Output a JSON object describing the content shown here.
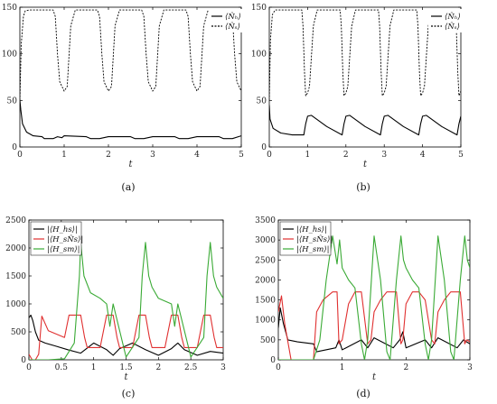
{
  "panels": {
    "a": {
      "caption": "(a)"
    },
    "b": {
      "caption": "(b)"
    },
    "c": {
      "caption": "(c)"
    },
    "d": {
      "caption": "(d)"
    }
  },
  "chart_data": [
    {
      "id": "a",
      "type": "line",
      "caption": "(a)",
      "xlabel": "t",
      "ylabel": "",
      "xlim": [
        0,
        5
      ],
      "ylim": [
        0,
        150
      ],
      "xticks": [
        0,
        1,
        2,
        3,
        4,
        5
      ],
      "yticks": [
        0,
        50,
        100,
        150
      ],
      "grid": false,
      "legend_position": "top-right",
      "series": [
        {
          "name": "⟨N̂ₕ⟩",
          "color": "#000000",
          "style": "solid",
          "x": [
            0,
            0.02,
            0.06,
            0.15,
            0.3,
            0.5,
            0.55,
            0.75,
            0.85,
            0.95,
            1.0,
            1.5,
            1.6,
            1.8,
            2.0,
            2.5,
            2.6,
            2.8,
            3.0,
            3.5,
            3.6,
            3.8,
            4.0,
            4.5,
            4.6,
            4.8,
            5.0
          ],
          "y": [
            50,
            40,
            25,
            16,
            12,
            11,
            9,
            9,
            11,
            10,
            12,
            11,
            9,
            9,
            11,
            11,
            9,
            9,
            11,
            11,
            9,
            9,
            11,
            11,
            9,
            9,
            12
          ]
        },
        {
          "name": "⟨N̂ₛ⟩",
          "color": "#000000",
          "style": "dashed",
          "x": [
            0,
            0.03,
            0.08,
            0.12,
            0.2,
            0.75,
            0.8,
            0.85,
            0.9,
            1.0,
            1.07,
            1.15,
            1.25,
            1.75,
            1.8,
            1.85,
            1.9,
            2.0,
            2.07,
            2.15,
            2.25,
            2.75,
            2.8,
            2.85,
            2.9,
            3.0,
            3.07,
            3.15,
            3.25,
            3.75,
            3.8,
            3.85,
            3.9,
            4.0,
            4.07,
            4.15,
            4.25,
            4.75,
            4.8,
            4.85,
            4.9,
            5.0
          ],
          "y": [
            50,
            110,
            140,
            146,
            147,
            147,
            140,
            100,
            70,
            60,
            65,
            130,
            147,
            147,
            140,
            100,
            70,
            60,
            65,
            130,
            147,
            147,
            140,
            100,
            70,
            60,
            65,
            130,
            147,
            147,
            140,
            100,
            70,
            60,
            65,
            130,
            147,
            147,
            140,
            100,
            70,
            60
          ]
        }
      ]
    },
    {
      "id": "b",
      "type": "line",
      "caption": "(b)",
      "xlabel": "t",
      "ylabel": "",
      "xlim": [
        0,
        5
      ],
      "ylim": [
        0,
        150
      ],
      "xticks": [
        0,
        1,
        2,
        3,
        4,
        5
      ],
      "yticks": [
        0,
        50,
        100,
        150
      ],
      "grid": false,
      "legend_position": "top-right",
      "series": [
        {
          "name": "⟨N̂ₕ⟩",
          "color": "#000000",
          "style": "solid",
          "x": [
            0,
            0.02,
            0.1,
            0.3,
            0.6,
            0.9,
            0.95,
            1.0,
            1.1,
            1.5,
            1.9,
            1.95,
            2.0,
            2.1,
            2.5,
            2.9,
            2.95,
            3.0,
            3.1,
            3.5,
            3.9,
            3.95,
            4.0,
            4.1,
            4.5,
            4.9,
            4.95,
            5.0
          ],
          "y": [
            45,
            30,
            20,
            15,
            13,
            13,
            25,
            33,
            34,
            22,
            13,
            25,
            33,
            34,
            22,
            13,
            25,
            33,
            34,
            22,
            13,
            25,
            33,
            34,
            22,
            13,
            25,
            33
          ]
        },
        {
          "name": "⟨N̂ₛ⟩",
          "color": "#000000",
          "style": "dashed",
          "x": [
            0,
            0.03,
            0.08,
            0.15,
            0.85,
            0.88,
            0.92,
            0.95,
            1.0,
            1.05,
            1.15,
            1.25,
            1.85,
            1.88,
            1.92,
            1.95,
            2.0,
            2.05,
            2.15,
            2.25,
            2.85,
            2.88,
            2.92,
            2.95,
            3.0,
            3.05,
            3.15,
            3.25,
            3.85,
            3.88,
            3.92,
            3.95,
            4.0,
            4.05,
            4.15,
            4.25,
            4.85,
            4.88,
            4.92,
            4.95,
            5.0
          ],
          "y": [
            50,
            115,
            142,
            147,
            147,
            130,
            80,
            55,
            58,
            65,
            130,
            147,
            147,
            130,
            80,
            55,
            58,
            65,
            130,
            147,
            147,
            130,
            80,
            55,
            58,
            65,
            130,
            147,
            147,
            130,
            80,
            55,
            58,
            65,
            130,
            147,
            147,
            130,
            80,
            55,
            60
          ]
        }
      ]
    },
    {
      "id": "c",
      "type": "line",
      "caption": "(c)",
      "xlabel": "t",
      "ylabel": "",
      "xlim": [
        0,
        3
      ],
      "ylim": [
        0,
        2500
      ],
      "xticks": [
        0,
        0.5,
        1,
        1.5,
        2,
        2.5,
        3
      ],
      "yticks": [
        0,
        500,
        1000,
        1500,
        2000,
        2500
      ],
      "grid": false,
      "legend_position": "top-left",
      "series": [
        {
          "name": "|⟨H_hs⟩|",
          "color": "#000000",
          "style": "solid",
          "x": [
            0,
            0.03,
            0.06,
            0.1,
            0.15,
            0.25,
            0.4,
            0.6,
            0.8,
            1.0,
            1.2,
            1.3,
            1.4,
            1.6,
            1.8,
            2.0,
            2.2,
            2.3,
            2.4,
            2.6,
            2.8,
            3.0
          ],
          "y": [
            750,
            800,
            700,
            500,
            350,
            300,
            250,
            180,
            120,
            300,
            180,
            80,
            200,
            300,
            180,
            80,
            200,
            300,
            180,
            80,
            150,
            120
          ]
        },
        {
          "name": "|⟨H_sN̂s⟩|",
          "color": "#e03030",
          "style": "solid",
          "x": [
            0,
            0.05,
            0.1,
            0.15,
            0.2,
            0.3,
            0.55,
            0.62,
            0.7,
            0.8,
            0.86,
            0.9,
            1.1,
            1.2,
            1.3,
            1.36,
            1.4,
            1.6,
            1.7,
            1.8,
            1.86,
            1.9,
            2.1,
            2.2,
            2.3,
            2.36,
            2.4,
            2.6,
            2.7,
            2.8,
            2.86,
            2.9,
            3.0
          ],
          "y": [
            100,
            0,
            0,
            100,
            780,
            520,
            400,
            800,
            800,
            800,
            400,
            220,
            220,
            800,
            800,
            400,
            220,
            220,
            800,
            800,
            400,
            220,
            220,
            800,
            800,
            400,
            220,
            220,
            800,
            800,
            400,
            220,
            220
          ]
        },
        {
          "name": "|⟨H_sm⟩|",
          "color": "#3aaa35",
          "style": "solid",
          "x": [
            0,
            0.3,
            0.55,
            0.7,
            0.78,
            0.8,
            0.85,
            0.95,
            1.1,
            1.2,
            1.25,
            1.3,
            1.5,
            1.7,
            1.75,
            1.8,
            1.85,
            1.9,
            2.0,
            2.2,
            2.25,
            2.3,
            2.5,
            2.7,
            2.75,
            2.8,
            2.85,
            2.9,
            3.0
          ],
          "y": [
            0,
            0,
            20,
            300,
            1500,
            2100,
            1500,
            1200,
            1100,
            1000,
            600,
            1000,
            50,
            400,
            1500,
            2100,
            1500,
            1300,
            1100,
            1000,
            600,
            1000,
            50,
            400,
            1500,
            2100,
            1500,
            1300,
            1100
          ]
        }
      ]
    },
    {
      "id": "d",
      "type": "line",
      "caption": "(d)",
      "xlabel": "t",
      "ylabel": "",
      "xlim": [
        0,
        3
      ],
      "ylim": [
        0,
        3500
      ],
      "xticks": [
        0,
        1,
        2,
        3
      ],
      "yticks": [
        0,
        500,
        1000,
        1500,
        2000,
        2500,
        3000,
        3500
      ],
      "grid": false,
      "legend_position": "top-left",
      "series": [
        {
          "name": "|⟨H_hs⟩|",
          "color": "#000000",
          "style": "solid",
          "x": [
            0,
            0.03,
            0.08,
            0.15,
            0.3,
            0.55,
            0.6,
            0.9,
            0.95,
            1.0,
            1.3,
            1.4,
            1.5,
            1.8,
            1.9,
            1.95,
            2.0,
            2.3,
            2.4,
            2.5,
            2.8,
            2.9,
            3.0
          ],
          "y": [
            800,
            1300,
            900,
            500,
            450,
            400,
            200,
            300,
            500,
            250,
            500,
            300,
            550,
            300,
            500,
            700,
            300,
            500,
            300,
            550,
            300,
            500,
            400
          ]
        },
        {
          "name": "|⟨H_sN̂s⟩|",
          "color": "#e03030",
          "style": "solid",
          "x": [
            0,
            0.05,
            0.1,
            0.2,
            0.25,
            0.55,
            0.6,
            0.7,
            0.85,
            0.92,
            0.95,
            1.0,
            1.1,
            1.2,
            1.3,
            1.4,
            1.45,
            1.5,
            1.6,
            1.7,
            1.85,
            1.92,
            1.95,
            2.0,
            2.1,
            2.2,
            2.3,
            2.4,
            2.45,
            2.5,
            2.6,
            2.7,
            2.85,
            2.92,
            2.95,
            3.0
          ],
          "y": [
            1200,
            1600,
            900,
            0,
            0,
            0,
            1200,
            1500,
            1700,
            1700,
            400,
            500,
            1400,
            1700,
            1700,
            400,
            500,
            1200,
            1500,
            1700,
            1700,
            400,
            500,
            1400,
            1700,
            1700,
            1500,
            500,
            400,
            1200,
            1500,
            1700,
            1700,
            400,
            500,
            450
          ]
        },
        {
          "name": "|⟨H_sm⟩|",
          "color": "#3aaa35",
          "style": "solid",
          "x": [
            0,
            0.55,
            0.65,
            0.75,
            0.85,
            0.92,
            0.96,
            1.0,
            1.1,
            1.2,
            1.3,
            1.35,
            1.4,
            1.5,
            1.6,
            1.7,
            1.75,
            1.85,
            1.92,
            1.96,
            2.0,
            2.1,
            2.2,
            2.3,
            2.35,
            2.4,
            2.5,
            2.6,
            2.7,
            2.75,
            2.85,
            2.92,
            2.96,
            3.0
          ],
          "y": [
            0,
            0,
            500,
            2000,
            3100,
            2400,
            3000,
            2300,
            2000,
            1800,
            400,
            0,
            500,
            3100,
            2000,
            200,
            0,
            2000,
            3100,
            2500,
            2300,
            2000,
            1800,
            400,
            0,
            500,
            3100,
            2000,
            200,
            0,
            2000,
            3100,
            2500,
            2300
          ]
        }
      ]
    }
  ]
}
